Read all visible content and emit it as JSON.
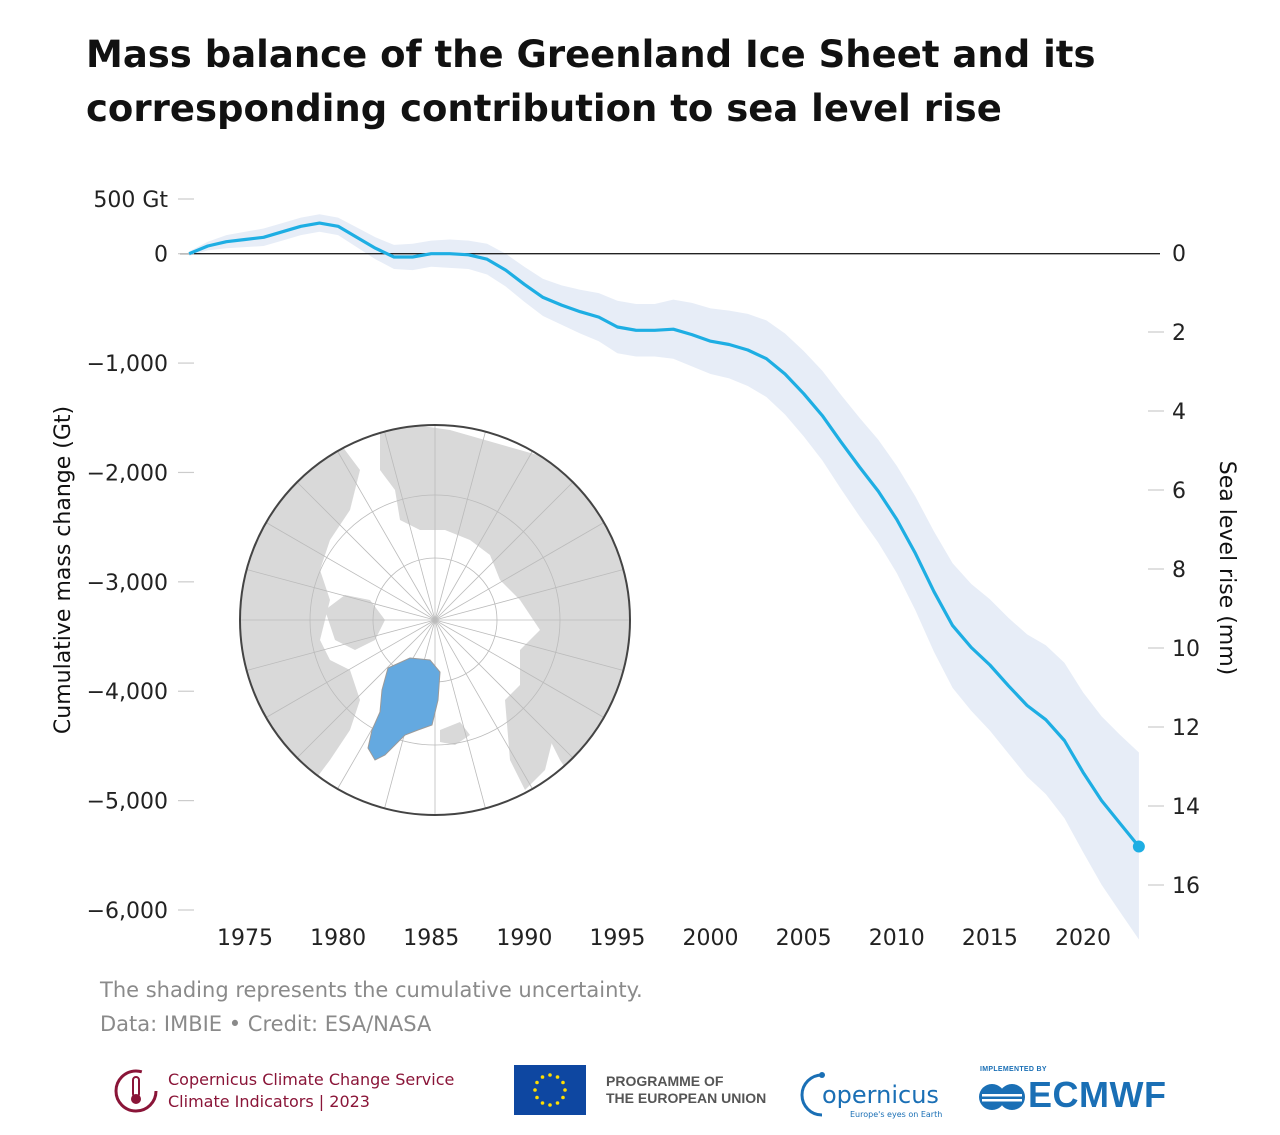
{
  "title_line1": "Mass balance of the Greenland Ice Sheet and its",
  "title_line2": "corresponding contribution to sea level rise",
  "note_line1": "The shading represents the cumulative uncertainty.",
  "note_line2": "Data: IMBIE • Credit: ESA/NASA",
  "footer": {
    "c3s_line1": "Copernicus Climate Change Service",
    "c3s_line2": "Climate Indicators | 2023",
    "eu_line1": "PROGRAMME OF",
    "eu_line2": "THE EUROPEAN UNION",
    "copernicus_name": "opernicus",
    "copernicus_tagline": "Europe's eyes on Earth",
    "ecmwf_small": "IMPLEMENTED BY",
    "ecmwf_name": "ECMWF"
  },
  "colors": {
    "line": "#1eaee3",
    "band": "#e7edf7",
    "greenland": "#64a9e0",
    "land": "#d9d9d9",
    "c3s": "#8a1538",
    "ecmwf": "#1a6fb5",
    "eu_flag": "#0e47a1",
    "eu_stars": "#ffde00"
  },
  "chart_data": {
    "type": "line",
    "title": "Mass balance of the Greenland Ice Sheet and its corresponding contribution to sea level rise",
    "ylabel": "Cumulative mass change (Gt)",
    "y2label": "Sea level rise (mm)",
    "xlim": [
      1972,
      2023
    ],
    "ylim": [
      -6000,
      500
    ],
    "y2lim": [
      0,
      16
    ],
    "xticks": [
      1975,
      1980,
      1985,
      1990,
      1995,
      2000,
      2005,
      2010,
      2015,
      2020
    ],
    "xtick_labels": [
      "1975",
      "1980",
      "1985",
      "1990",
      "1995",
      "2000",
      "2005",
      "2010",
      "2015",
      "2020"
    ],
    "yticks": [
      500,
      0,
      -1000,
      -2000,
      -3000,
      -4000,
      -5000,
      -6000
    ],
    "ytick_labels": [
      "500 Gt",
      "0",
      "−1,000",
      "−2,000",
      "−3,000",
      "−4,000",
      "−5,000",
      "−6,000"
    ],
    "y2ticks": [
      0,
      2,
      4,
      6,
      8,
      10,
      12,
      14,
      16
    ],
    "y2tick_labels": [
      "0",
      "2",
      "4",
      "6",
      "8",
      "10",
      "12",
      "14",
      "16"
    ],
    "gridlines": "none",
    "zero_line": true,
    "series": [
      {
        "x": [
          1972,
          1973,
          1974,
          1975,
          1976,
          1977,
          1978,
          1979,
          1980,
          1981,
          1982,
          1983,
          1984,
          1985,
          1986,
          1987,
          1988,
          1989,
          1990,
          1991,
          1992,
          1993,
          1994,
          1995,
          1996,
          1997,
          1998,
          1999,
          2000,
          2001,
          2002,
          2003,
          2004,
          2005,
          2006,
          2007,
          2008,
          2009,
          2010,
          2011,
          2012,
          2013,
          2014,
          2015,
          2016,
          2017,
          2018,
          2019,
          2020,
          2021,
          2022,
          2023
        ],
        "values": [
          0,
          70,
          110,
          130,
          150,
          200,
          250,
          280,
          250,
          150,
          50,
          -30,
          -30,
          0,
          0,
          -10,
          -50,
          -150,
          -280,
          -400,
          -470,
          -530,
          -580,
          -670,
          -700,
          -700,
          -690,
          -740,
          -800,
          -830,
          -880,
          -960,
          -1100,
          -1280,
          -1480,
          -1720,
          -1950,
          -2170,
          -2430,
          -2740,
          -3090,
          -3400,
          -3600,
          -3760,
          -3950,
          -4130,
          -4260,
          -4450,
          -4740,
          -5000,
          -5210,
          -5420
        ],
        "band_upper": [
          20,
          110,
          170,
          200,
          230,
          280,
          330,
          360,
          330,
          240,
          150,
          80,
          90,
          120,
          130,
          120,
          90,
          0,
          -120,
          -230,
          -290,
          -330,
          -360,
          -430,
          -460,
          -460,
          -420,
          -450,
          -500,
          -520,
          -550,
          -610,
          -730,
          -890,
          -1070,
          -1290,
          -1500,
          -1700,
          -1940,
          -2220,
          -2540,
          -2830,
          -3020,
          -3160,
          -3330,
          -3480,
          -3580,
          -3740,
          -4010,
          -4230,
          -4400,
          -4560
        ],
        "band_lower": [
          -20,
          30,
          50,
          60,
          70,
          120,
          170,
          200,
          170,
          60,
          -50,
          -140,
          -150,
          -120,
          -130,
          -140,
          -190,
          -300,
          -440,
          -570,
          -650,
          -730,
          -800,
          -910,
          -940,
          -940,
          -960,
          -1030,
          -1100,
          -1140,
          -1210,
          -1310,
          -1470,
          -1670,
          -1890,
          -2150,
          -2400,
          -2640,
          -2920,
          -3260,
          -3640,
          -3970,
          -4180,
          -4360,
          -4570,
          -4780,
          -4940,
          -5160,
          -5470,
          -5770,
          -6020,
          -6270
        ]
      }
    ],
    "endpoint": {
      "x": 2023,
      "value": -5420
    }
  }
}
